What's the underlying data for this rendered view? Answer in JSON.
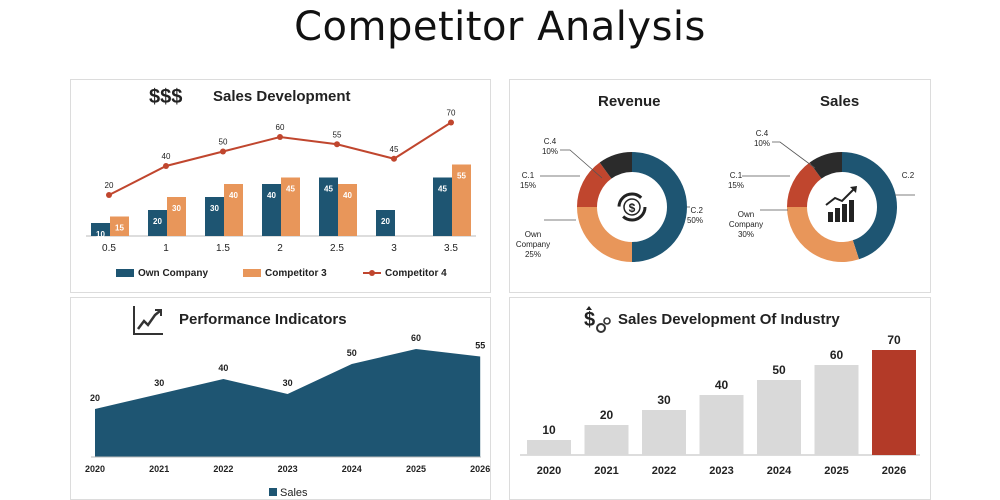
{
  "page": {
    "title": "Competitor Analysis"
  },
  "colors": {
    "navy": "#1e5572",
    "orange": "#e8965a",
    "red": "#c0462e",
    "dark": "#2b2b2b",
    "gray": "#d9d9d9",
    "highlight": "#b33a28"
  },
  "panels": {
    "sales_development": {
      "title": "Sales Development",
      "icon": "money-icon",
      "icon_text": "$$$"
    },
    "donuts": {
      "revenue_title": "Revenue",
      "sales_title": "Sales",
      "revenue_icon": "dollar-refresh-icon",
      "sales_icon": "chart-growth-icon"
    },
    "performance": {
      "title": "Performance Indicators",
      "icon": "trend-chart-icon"
    },
    "industry": {
      "title": "Sales Development Of Industry",
      "icon": "dollar-gears-icon"
    }
  },
  "chart_data": [
    {
      "type": "bar",
      "title": "Sales Development",
      "categories": [
        "0.5",
        "1",
        "1.5",
        "2",
        "2.5",
        "3",
        "3.5"
      ],
      "series": [
        {
          "name": "Own Company",
          "type": "bar",
          "values": [
            10,
            20,
            30,
            40,
            45,
            20,
            45
          ]
        },
        {
          "name": "Competitor 3",
          "type": "bar",
          "values": [
            15,
            30,
            40,
            45,
            40,
            null,
            55
          ]
        },
        {
          "name": "Competitor 4",
          "type": "line",
          "values": [
            20,
            40,
            50,
            60,
            55,
            45,
            70
          ]
        }
      ],
      "legend": "bottom"
    },
    {
      "type": "pie",
      "title": "Revenue",
      "slices": [
        {
          "label": "C.2",
          "value": 50,
          "value_label": "50%"
        },
        {
          "label": "Own Company",
          "value": 25,
          "value_label": "25%"
        },
        {
          "label": "C.1",
          "value": 15,
          "value_label": "15%"
        },
        {
          "label": "C.4",
          "value": 10,
          "value_label": "10%"
        }
      ]
    },
    {
      "type": "pie",
      "title": "Sales",
      "slices": [
        {
          "label": "C.2",
          "value": 45,
          "value_label": ""
        },
        {
          "label": "Own Company",
          "value": 30,
          "value_label": "30%"
        },
        {
          "label": "C.1",
          "value": 15,
          "value_label": "15%"
        },
        {
          "label": "C.4",
          "value": 10,
          "value_label": "10%"
        }
      ]
    },
    {
      "type": "area",
      "title": "Performance Indicators",
      "x": [
        "2020",
        "2021",
        "2022",
        "2023",
        "2024",
        "2025",
        "2026"
      ],
      "series": [
        {
          "name": "Sales",
          "values": [
            20,
            30,
            40,
            30,
            50,
            60,
            55
          ]
        }
      ],
      "legend": "bottom"
    },
    {
      "type": "bar",
      "title": "Sales Development Of Industry",
      "categories": [
        "2020",
        "2021",
        "2022",
        "2023",
        "2024",
        "2025",
        "2026"
      ],
      "values": [
        10,
        20,
        30,
        40,
        50,
        60,
        70
      ],
      "highlight_index": 6
    }
  ]
}
